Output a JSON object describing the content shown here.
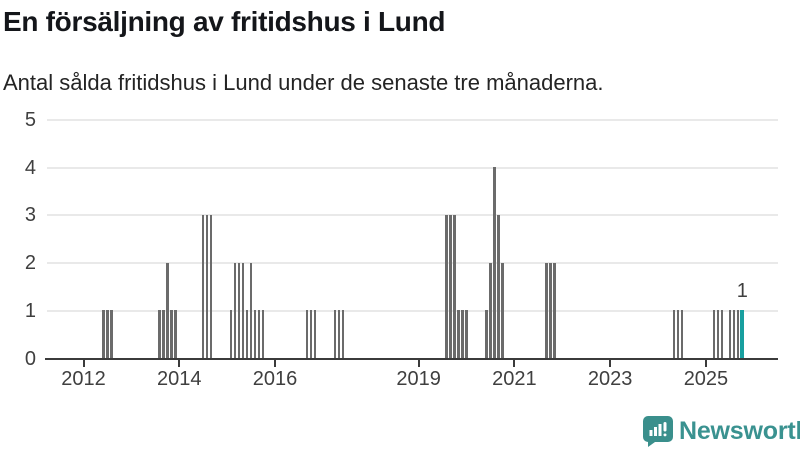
{
  "header": {
    "title": "En försäljning av fritidshus i Lund",
    "subtitle": "Antal sålda fritidshus i Lund under de senaste tre månaderna."
  },
  "annotation": {
    "label": "1"
  },
  "footer": {
    "brand": "Newsworthy"
  },
  "colors": {
    "bar": "#6b6b6b",
    "highlight": "#189f9f",
    "axis": "#3b3b3b",
    "grid": "#e9e9e9",
    "text": "#14161a",
    "muted_text": "#3f3f3f",
    "brand_teal": "#3a9290",
    "brand_icon_teal": "#3a8f8c"
  },
  "chart_data": {
    "type": "bar",
    "title": "En försäljning av fritidshus i Lund",
    "subtitle": "Antal sålda fritidshus i Lund under de senaste tre månaderna.",
    "xlabel": "",
    "ylabel": "",
    "ylim": [
      0,
      5
    ],
    "y_ticks": [
      0,
      1,
      2,
      3,
      4,
      5
    ],
    "x_tick_years": [
      2012,
      2014,
      2016,
      2019,
      2021,
      2023,
      2025
    ],
    "grid": true,
    "legend": false,
    "series": [
      {
        "month": "2012-06",
        "value": 1
      },
      {
        "month": "2012-07",
        "value": 1
      },
      {
        "month": "2012-08",
        "value": 1
      },
      {
        "month": "2013-08",
        "value": 1
      },
      {
        "month": "2013-09",
        "value": 1
      },
      {
        "month": "2013-10",
        "value": 2
      },
      {
        "month": "2013-11",
        "value": 1
      },
      {
        "month": "2013-12",
        "value": 1
      },
      {
        "month": "2014-07",
        "value": 3
      },
      {
        "month": "2014-08",
        "value": 3
      },
      {
        "month": "2014-09",
        "value": 3
      },
      {
        "month": "2015-02",
        "value": 1
      },
      {
        "month": "2015-03",
        "value": 2
      },
      {
        "month": "2015-04",
        "value": 2
      },
      {
        "month": "2015-05",
        "value": 2
      },
      {
        "month": "2015-06",
        "value": 1
      },
      {
        "month": "2015-07",
        "value": 2
      },
      {
        "month": "2015-08",
        "value": 1
      },
      {
        "month": "2015-09",
        "value": 1
      },
      {
        "month": "2015-10",
        "value": 1
      },
      {
        "month": "2016-09",
        "value": 1
      },
      {
        "month": "2016-10",
        "value": 1
      },
      {
        "month": "2016-11",
        "value": 1
      },
      {
        "month": "2017-04",
        "value": 1
      },
      {
        "month": "2017-05",
        "value": 1
      },
      {
        "month": "2017-06",
        "value": 1
      },
      {
        "month": "2019-08",
        "value": 3
      },
      {
        "month": "2019-09",
        "value": 3
      },
      {
        "month": "2019-10",
        "value": 3
      },
      {
        "month": "2019-11",
        "value": 1
      },
      {
        "month": "2019-12",
        "value": 1
      },
      {
        "month": "2020-01",
        "value": 1
      },
      {
        "month": "2020-06",
        "value": 1
      },
      {
        "month": "2020-07",
        "value": 2
      },
      {
        "month": "2020-08",
        "value": 4
      },
      {
        "month": "2020-09",
        "value": 3
      },
      {
        "month": "2020-10",
        "value": 2
      },
      {
        "month": "2021-09",
        "value": 2
      },
      {
        "month": "2021-10",
        "value": 2
      },
      {
        "month": "2021-11",
        "value": 2
      },
      {
        "month": "2024-05",
        "value": 1
      },
      {
        "month": "2024-06",
        "value": 1
      },
      {
        "month": "2024-07",
        "value": 1
      },
      {
        "month": "2025-03",
        "value": 1
      },
      {
        "month": "2025-04",
        "value": 1
      },
      {
        "month": "2025-05",
        "value": 1
      },
      {
        "month": "2025-07",
        "value": 1
      },
      {
        "month": "2025-08",
        "value": 1
      },
      {
        "month": "2025-09",
        "value": 1
      },
      {
        "month": "2025-10",
        "value": 1,
        "highlight": true,
        "label": "1"
      }
    ]
  }
}
